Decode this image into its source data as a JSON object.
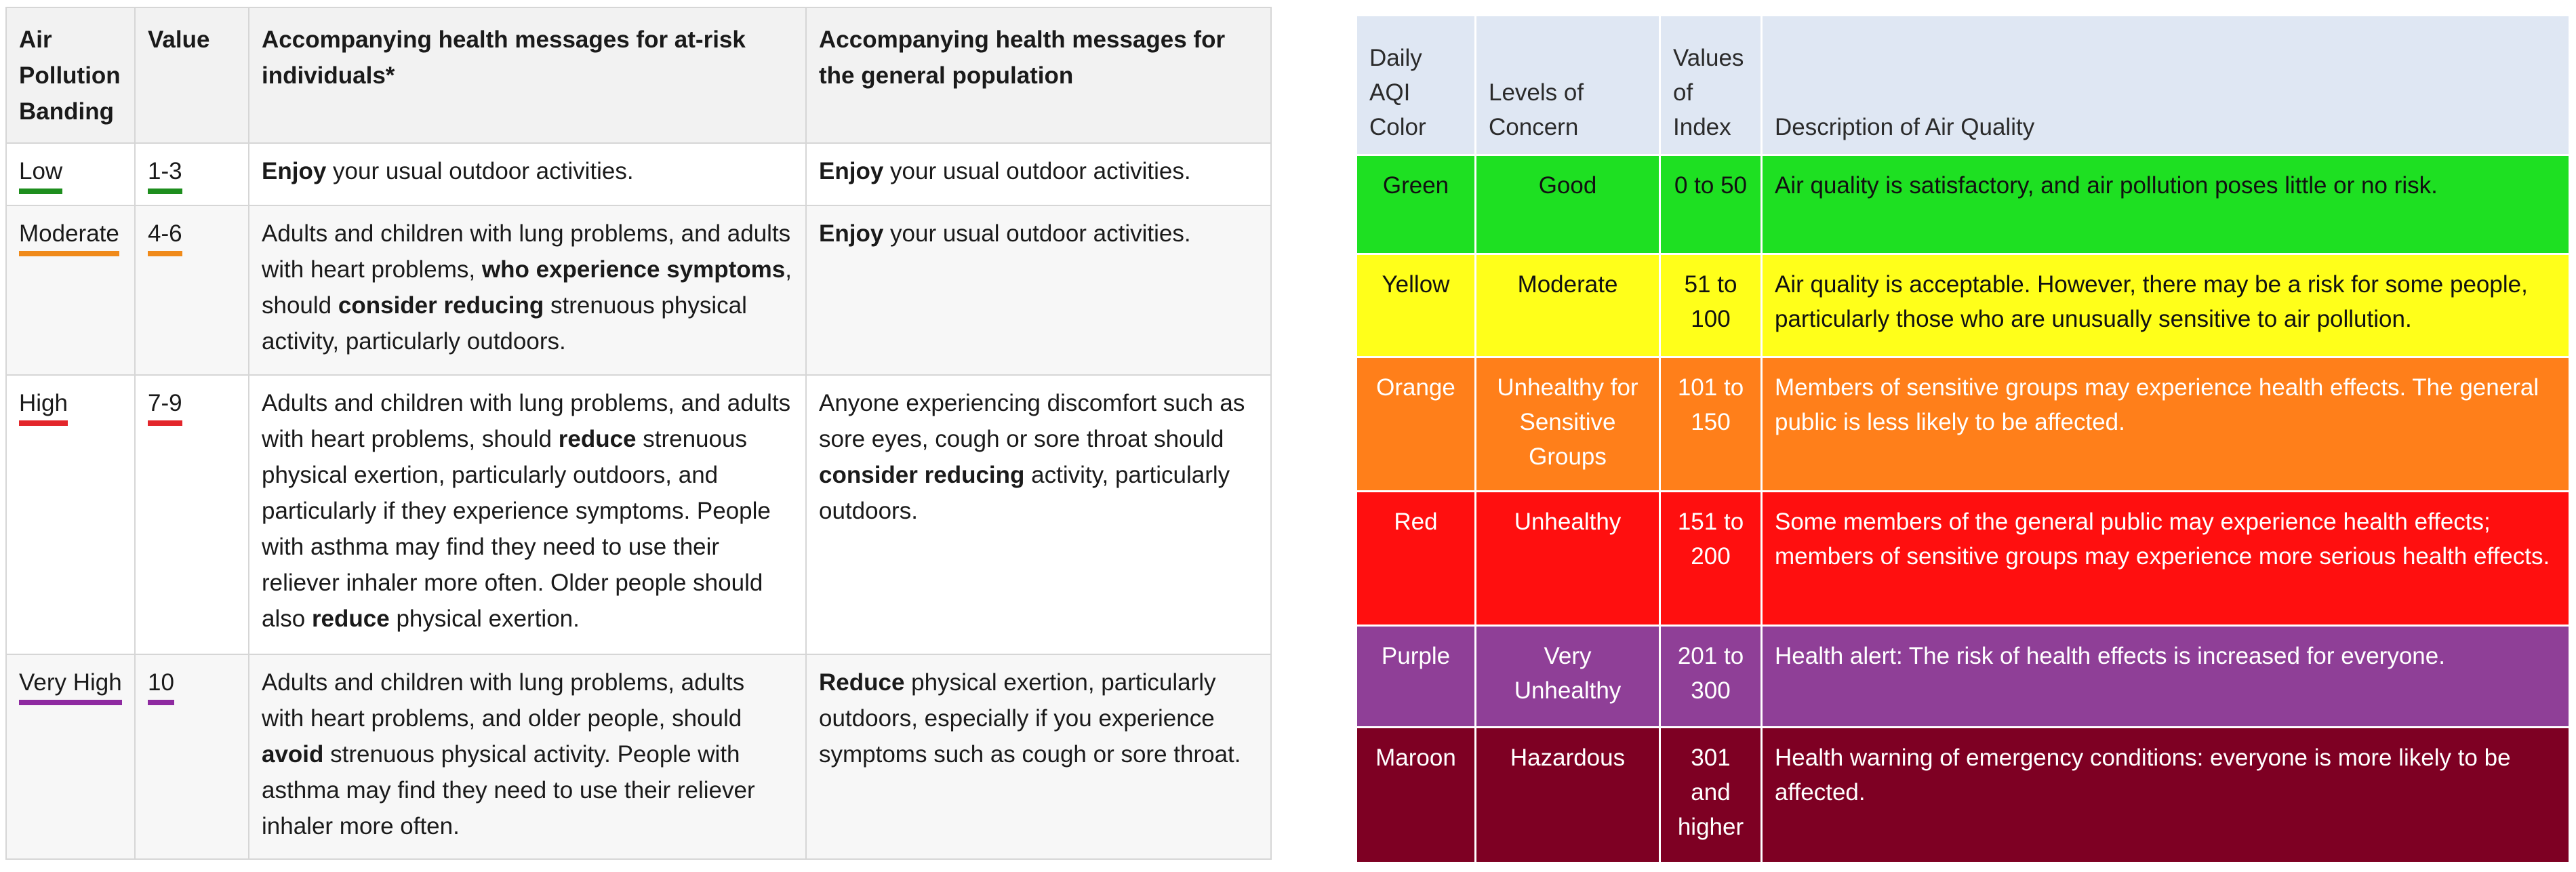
{
  "daqi": {
    "headers": {
      "banding": "Air Pollution Banding",
      "value": "Value",
      "at_risk": "Accompanying health messages for at-risk individuals*",
      "general": "Accompanying health messages for the general population"
    },
    "rows": [
      {
        "band": "Low",
        "value": "1-3",
        "underline_color": "#1e8e1e",
        "at_risk": [
          {
            "text": "Enjoy",
            "bold": true
          },
          {
            "text": " your usual outdoor activities.",
            "bold": false
          }
        ],
        "general": [
          {
            "text": "Enjoy",
            "bold": true
          },
          {
            "text": " your usual outdoor activities.",
            "bold": false
          }
        ]
      },
      {
        "band": "Moderate",
        "value": "4-6",
        "underline_color": "#f08a1a",
        "at_risk": [
          {
            "text": "Adults and children with lung problems, and adults with heart problems, ",
            "bold": false
          },
          {
            "text": "who experience symptoms",
            "bold": true
          },
          {
            "text": ", should ",
            "bold": false
          },
          {
            "text": "consider reducing",
            "bold": true
          },
          {
            "text": " strenuous physical activity, particularly outdoors.",
            "bold": false
          }
        ],
        "general": [
          {
            "text": "Enjoy",
            "bold": true
          },
          {
            "text": " your usual outdoor activities.",
            "bold": false
          }
        ]
      },
      {
        "band": "High",
        "value": "7-9",
        "underline_color": "#e3262b",
        "at_risk": [
          {
            "text": "Adults and children with lung problems, and adults with heart problems, should ",
            "bold": false
          },
          {
            "text": "reduce",
            "bold": true
          },
          {
            "text": " strenuous physical exertion, particularly outdoors, and particularly if they experience symptoms. People with asthma may find they need to use their reliever inhaler more often. Older people should also ",
            "bold": false
          },
          {
            "text": "reduce",
            "bold": true
          },
          {
            "text": " physical exertion.",
            "bold": false
          }
        ],
        "general": [
          {
            "text": "Anyone experiencing discomfort such as sore eyes, cough or sore throat should ",
            "bold": false
          },
          {
            "text": "consider reducing",
            "bold": true
          },
          {
            "text": " activity, particularly outdoors.",
            "bold": false
          }
        ]
      },
      {
        "band": "Very High",
        "value": "10",
        "underline_color": "#8e2aa0",
        "at_risk": [
          {
            "text": "Adults and children with lung problems, adults with heart problems, and older people, should ",
            "bold": false
          },
          {
            "text": "avoid",
            "bold": true
          },
          {
            "text": " strenuous physical activity. People with asthma may find they need to use their reliever inhaler more often.",
            "bold": false
          }
        ],
        "general": [
          {
            "text": "Reduce",
            "bold": true
          },
          {
            "text": " physical exertion, particularly outdoors, especially if you experience symptoms such as cough or sore throat.",
            "bold": false
          }
        ]
      }
    ]
  },
  "aqi": {
    "headers": {
      "color": "Daily AQI Color",
      "level": "Levels of Concern",
      "index": "Values of Index",
      "description": "Description of Air Quality"
    },
    "rows": [
      {
        "color": "Green",
        "level": "Good",
        "index": "0 to 50",
        "description": "Air quality is satisfactory, and air pollution poses little or no risk.",
        "bg": "#1ee022"
      },
      {
        "color": "Yellow",
        "level": "Moderate",
        "index": "51 to 100",
        "description": "Air quality is acceptable. However, there may be a risk for some people, particularly those who are unusually sensitive to air pollution.",
        "bg": "#ffff1a"
      },
      {
        "color": "Orange",
        "level": "Unhealthy for Sensitive Groups",
        "index": "101 to 150",
        "description": "Members of sensitive groups may experience health effects. The general public is less likely to be affected.",
        "bg": "#ff7f1a"
      },
      {
        "color": "Red",
        "level": "Unhealthy",
        "index": "151 to 200",
        "description": "Some members of the general public may experience health effects; members of sensitive groups may experience more serious health effects.",
        "bg": "#ff0f0f"
      },
      {
        "color": "Purple",
        "level": "Very Unhealthy",
        "index": "201 to 300",
        "description": "Health alert: The risk of health effects is increased for everyone.",
        "bg": "#8f3f97"
      },
      {
        "color": "Maroon",
        "level": "Hazardous",
        "index": "301 and higher",
        "description": "Health warning of emergency conditions: everyone is more likely to be affected.",
        "bg": "#7e0023"
      }
    ]
  }
}
